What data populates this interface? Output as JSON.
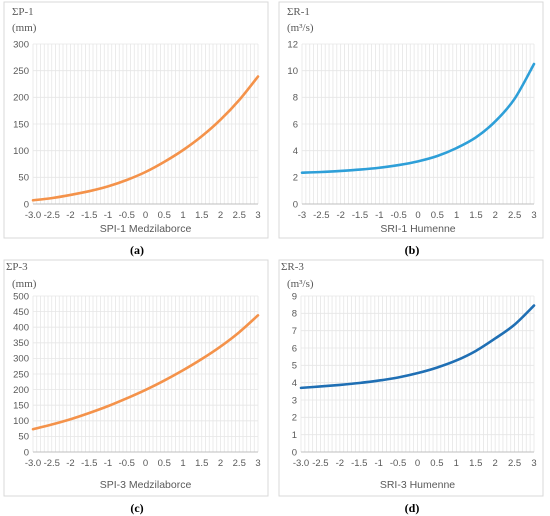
{
  "chart_data": [
    {
      "type": "line",
      "panel_label": "(a)",
      "ylabel_line1": "ΣP-1",
      "ylabel_line2": "(mm)",
      "xlabel": "SPI-1 Medzilaborce",
      "x_ticks": [
        "-3.0",
        "-2.5",
        "-2",
        "-1.5",
        "-1",
        "-0.5",
        "0",
        "0.5",
        "1",
        "1.5",
        "2",
        "2.5",
        "3"
      ],
      "ylim": [
        0,
        300
      ],
      "y_ticks": [
        0,
        50,
        100,
        150,
        200,
        250,
        300
      ],
      "color": "#f4924a",
      "x": [
        -3,
        -2.5,
        -2,
        -1.5,
        -1,
        -0.5,
        0,
        0.5,
        1,
        1.5,
        2,
        2.5,
        3
      ],
      "y": [
        7,
        11,
        17,
        24,
        33,
        45,
        60,
        79,
        101,
        127,
        158,
        195,
        239
      ]
    },
    {
      "type": "line",
      "panel_label": "(b)",
      "ylabel_line1": "ΣR-1",
      "ylabel_line2": "(m³/s)",
      "xlabel": "SRI-1 Humenne",
      "x_ticks": [
        "-3",
        "-2.5",
        "-2",
        "-1.5",
        "-1",
        "-0.5",
        "0",
        "0.5",
        "1",
        "1.5",
        "2",
        "2.5",
        "3"
      ],
      "ylim": [
        0,
        12
      ],
      "y_ticks": [
        0,
        2,
        4,
        6,
        8,
        10,
        12
      ],
      "color": "#2e9fd8",
      "x": [
        -3,
        -2.5,
        -2,
        -1.5,
        -1,
        -0.5,
        0,
        0.5,
        1,
        1.5,
        2,
        2.5,
        3
      ],
      "y": [
        2.35,
        2.4,
        2.48,
        2.58,
        2.72,
        2.92,
        3.2,
        3.6,
        4.2,
        5.0,
        6.2,
        7.9,
        10.5
      ]
    },
    {
      "type": "line",
      "panel_label": "(c)",
      "ylabel_line1": "ΣP-3",
      "ylabel_line2": "(mm)",
      "xlabel": "SPI-3 Medzilaborce",
      "x_ticks": [
        "-3.0",
        "-2.5",
        "-2",
        "-1.5",
        "-1",
        "-0.5",
        "0",
        "0.5",
        "1",
        "1.5",
        "2",
        "2.5",
        "3"
      ],
      "ylim": [
        0,
        500
      ],
      "y_ticks": [
        0,
        50,
        100,
        150,
        200,
        250,
        300,
        350,
        400,
        450,
        500
      ],
      "color": "#f4924a",
      "x": [
        -3,
        -2.5,
        -2,
        -1.5,
        -1,
        -0.5,
        0,
        0.5,
        1,
        1.5,
        2,
        2.5,
        3
      ],
      "y": [
        73,
        88,
        105,
        125,
        147,
        172,
        199,
        229,
        262,
        298,
        338,
        384,
        438
      ]
    },
    {
      "type": "line",
      "panel_label": "(d)",
      "ylabel_line1": "ΣR-3",
      "ylabel_line2": "(m³/s)",
      "xlabel": "SRI-3 Humenne",
      "x_ticks": [
        "-3.0",
        "-2.5",
        "-2",
        "-1.5",
        "-1",
        "-0.5",
        "0",
        "0.5",
        "1",
        "1.5",
        "2",
        "2.5",
        "3"
      ],
      "ylim": [
        0,
        9
      ],
      "y_ticks": [
        0,
        1,
        2,
        3,
        4,
        5,
        6,
        7,
        8,
        9
      ],
      "color": "#1f6fb4",
      "x": [
        -3,
        -2.5,
        -2,
        -1.5,
        -1,
        -0.5,
        0,
        0.5,
        1,
        1.5,
        2,
        2.5,
        3
      ],
      "y": [
        3.7,
        3.78,
        3.87,
        3.98,
        4.12,
        4.3,
        4.55,
        4.87,
        5.28,
        5.83,
        6.55,
        7.35,
        8.45
      ]
    }
  ]
}
